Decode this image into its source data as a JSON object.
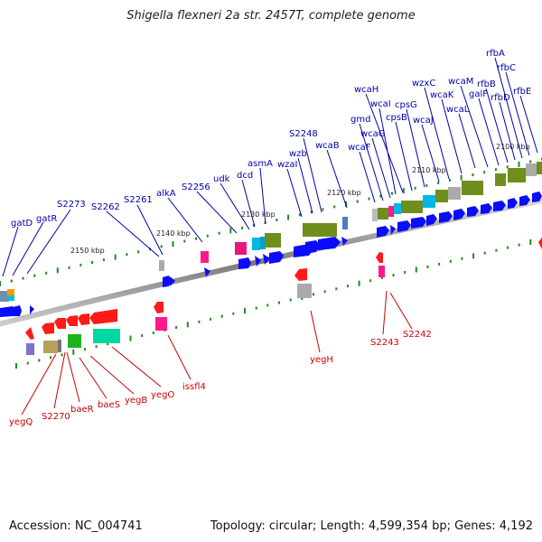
{
  "title": "Shigella flexneri 2a str. 2457T, complete genome",
  "footer": {
    "accession": "Accession: NC_004741",
    "stats": "Topology: circular; Length: 4,599,354 bp; Genes: 4,192"
  },
  "colors": {
    "forward_label": "#0000aa",
    "reverse_label": "#cc0000",
    "forward_arrow": "#0b0bff",
    "reverse_arrow": "#ff1a1a",
    "cog_dots": "#1e8c1e",
    "backbone": "#888888"
  },
  "ruler": {
    "unit": "kbp",
    "ticks": [
      {
        "label": "2100 kbp"
      },
      {
        "label": "2110 kbp"
      },
      {
        "label": "2120 kbp"
      },
      {
        "label": "2130 kbp"
      },
      {
        "label": "2140 kbp"
      },
      {
        "label": "2150 kbp"
      }
    ]
  },
  "forward_labels": [
    "gatD",
    "gatR",
    "S2273",
    "S2262",
    "S2261",
    "alkA",
    "S2256",
    "udk",
    "dcd",
    "asmA",
    "wzaI",
    "wzb",
    "S2248",
    "wcaB",
    "wcaF",
    "gmd",
    "wcaG",
    "wcaI",
    "wcaH",
    "cpsB",
    "cpsG",
    "wcaJ",
    "wzxC",
    "wcaK",
    "wcaL",
    "wcaM",
    "galF",
    "rfbB",
    "rfbD",
    "rfbA",
    "rfbC",
    "rfbE"
  ],
  "reverse_labels": [
    "yegQ",
    "S2270",
    "baeR",
    "baeS",
    "yegB",
    "yegO",
    "issfl4",
    "yegH",
    "S2243",
    "S2242"
  ]
}
